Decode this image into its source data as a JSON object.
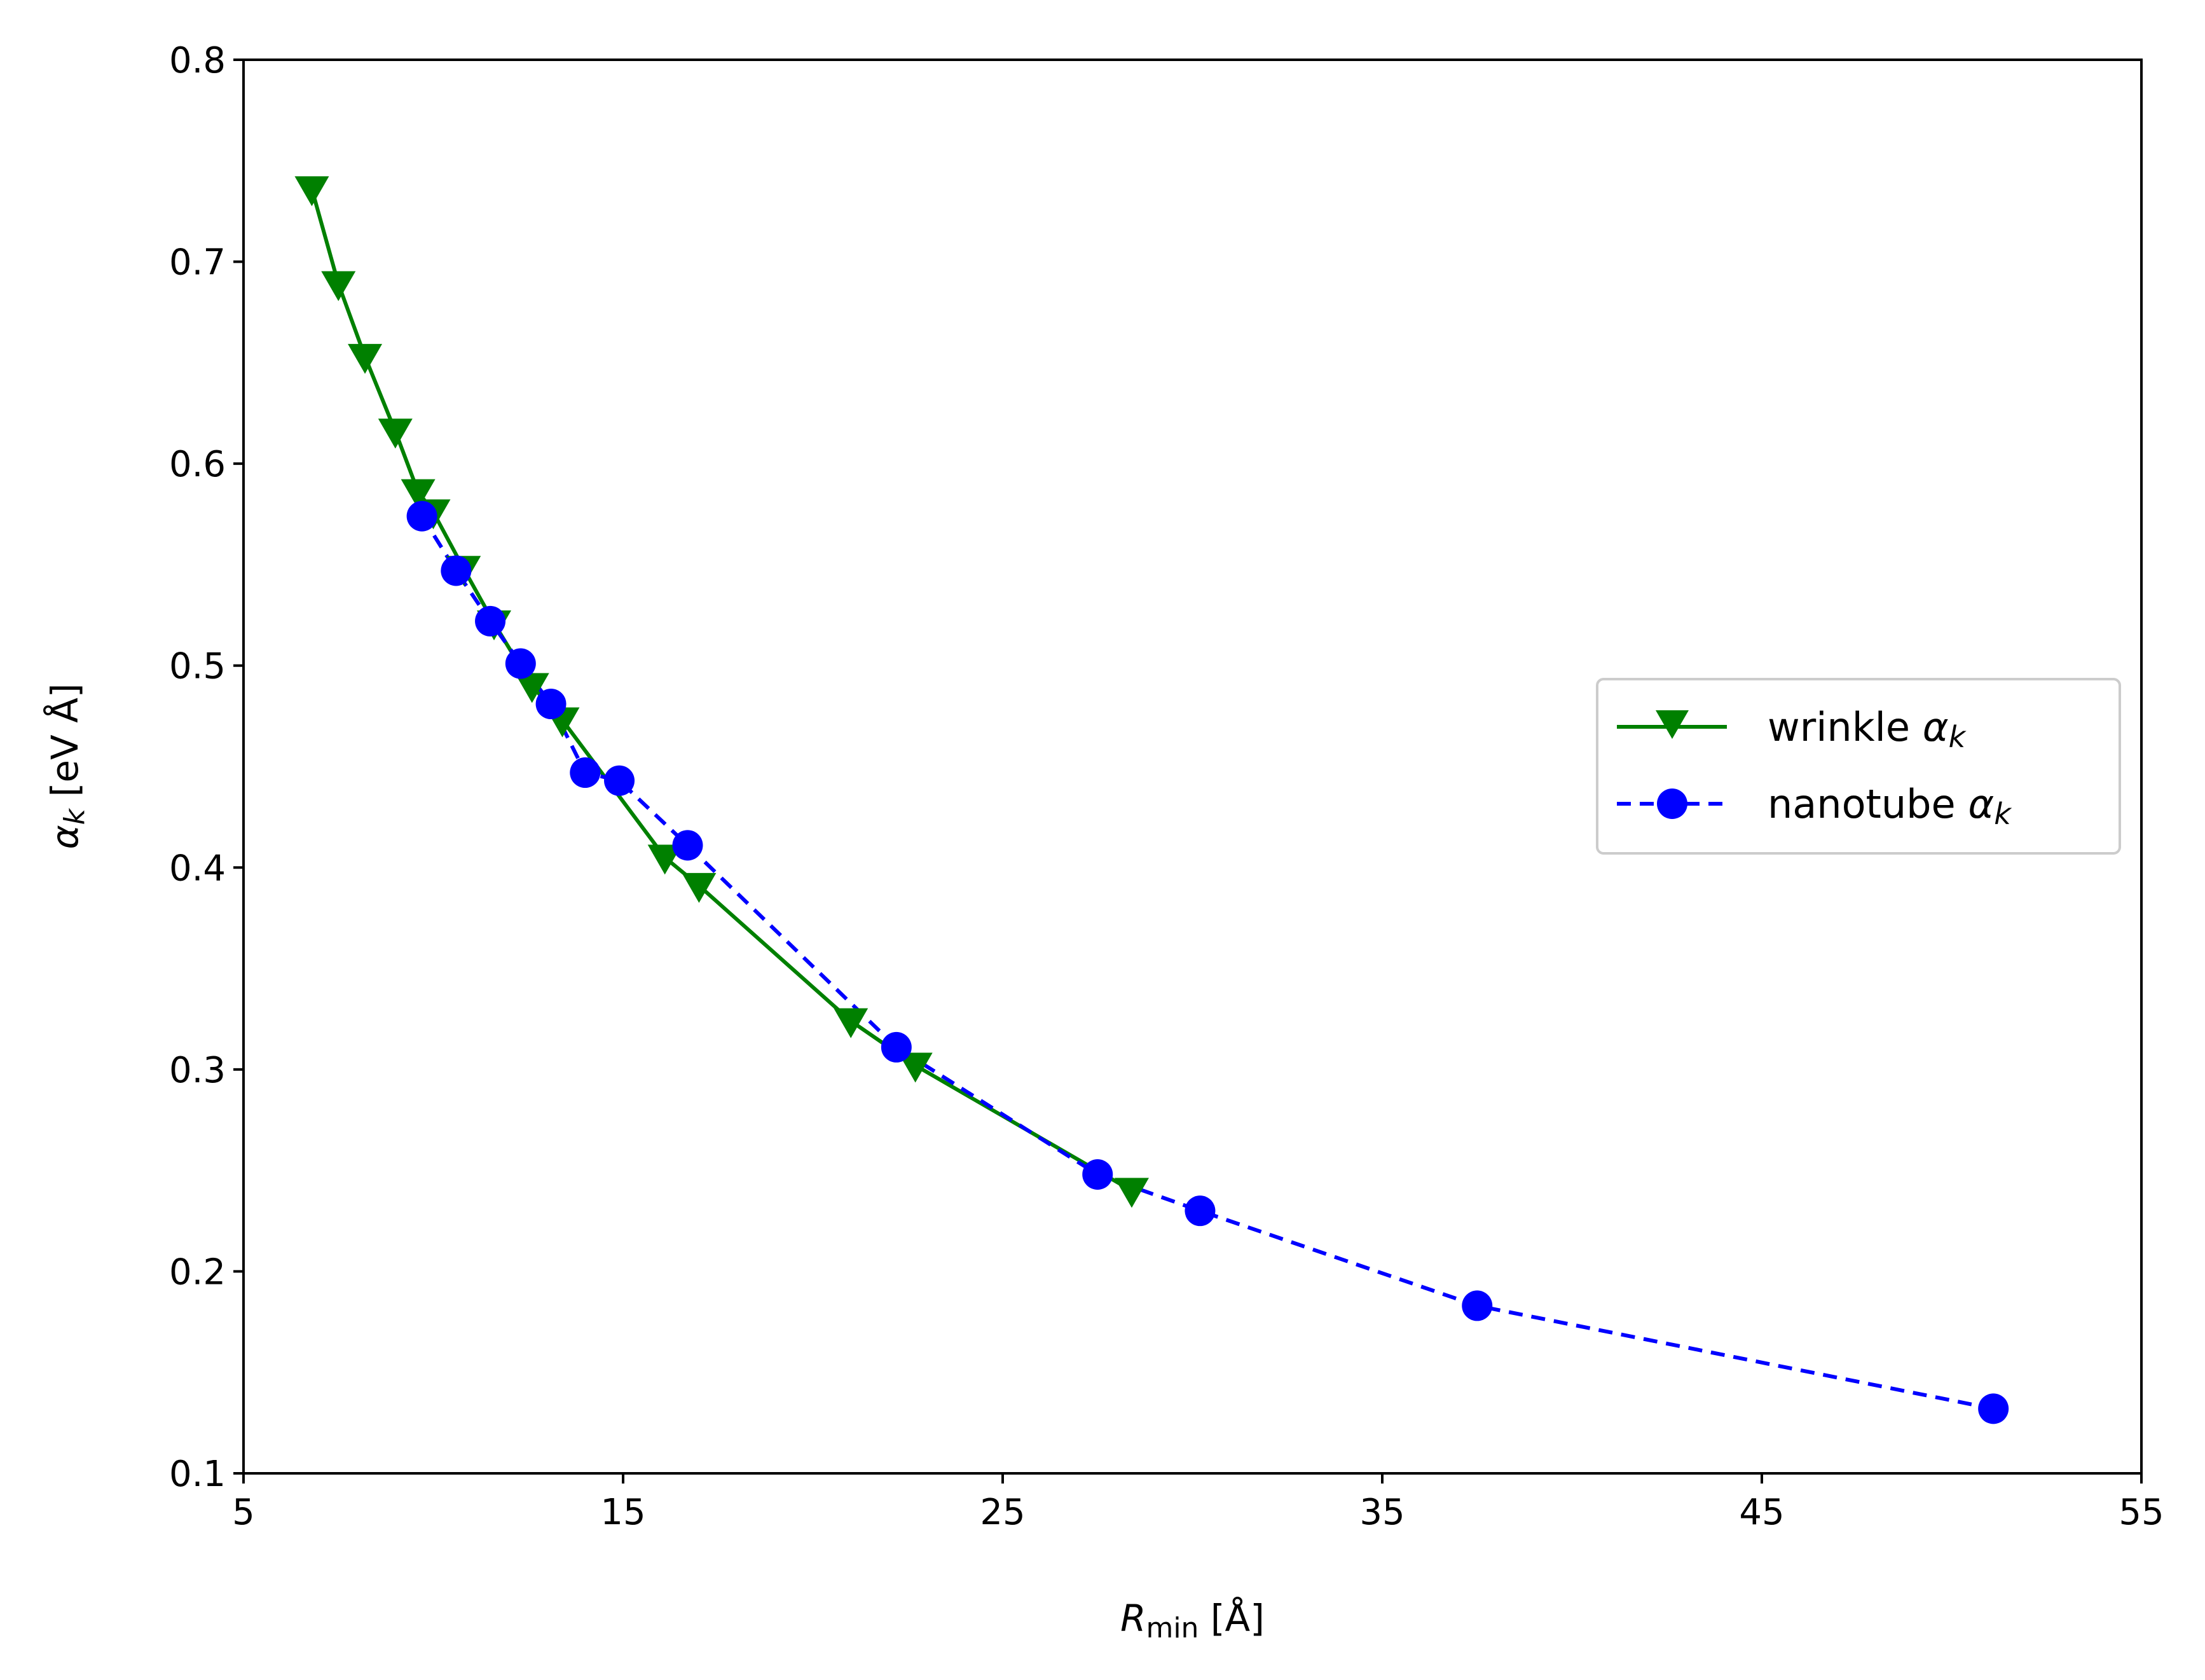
{
  "chart_data": {
    "type": "line",
    "xlabel": {
      "symbol": "R",
      "subscript": "min",
      "unit": "[Å]"
    },
    "ylabel": {
      "symbol": "α",
      "subscript": "k",
      "unit": "[eV Å]"
    },
    "xlim": [
      5,
      55
    ],
    "ylim": [
      0.1,
      0.8
    ],
    "xticks": [
      5,
      15,
      25,
      35,
      45,
      55
    ],
    "xtick_labels": [
      "5",
      "15",
      "25",
      "35",
      "45",
      "55"
    ],
    "yticks": [
      0.1,
      0.2,
      0.3,
      0.4,
      0.5,
      0.6,
      0.7,
      0.8
    ],
    "ytick_labels": [
      "0.1",
      "0.2",
      "0.3",
      "0.4",
      "0.5",
      "0.6",
      "0.7",
      "0.8"
    ],
    "grid": false,
    "legend_position": "center-right",
    "series": [
      {
        "name": "wrinkle",
        "subscript": "k",
        "symbol": "α",
        "color": "#008000",
        "linestyle": "solid",
        "marker": "triangle-down",
        "points": [
          {
            "x": 6.8,
            "y": 0.736
          },
          {
            "x": 7.5,
            "y": 0.689
          },
          {
            "x": 8.2,
            "y": 0.653
          },
          {
            "x": 9.0,
            "y": 0.616
          },
          {
            "x": 9.6,
            "y": 0.586
          },
          {
            "x": 10.0,
            "y": 0.576
          },
          {
            "x": 10.8,
            "y": 0.548
          },
          {
            "x": 11.6,
            "y": 0.521
          },
          {
            "x": 12.6,
            "y": 0.49
          },
          {
            "x": 13.4,
            "y": 0.473
          },
          {
            "x": 16.1,
            "y": 0.405
          },
          {
            "x": 17.0,
            "y": 0.391
          },
          {
            "x": 21.0,
            "y": 0.324
          },
          {
            "x": 22.7,
            "y": 0.302
          },
          {
            "x": 28.4,
            "y": 0.24
          }
        ]
      },
      {
        "name": "nanotube",
        "subscript": "k",
        "symbol": "α",
        "color": "#0000ff",
        "linestyle": "dashed",
        "marker": "circle",
        "points": [
          {
            "x": 9.7,
            "y": 0.574
          },
          {
            "x": 10.6,
            "y": 0.547
          },
          {
            "x": 11.5,
            "y": 0.522
          },
          {
            "x": 12.3,
            "y": 0.501
          },
          {
            "x": 13.1,
            "y": 0.481
          },
          {
            "x": 14.0,
            "y": 0.447
          },
          {
            "x": 14.9,
            "y": 0.443
          },
          {
            "x": 16.7,
            "y": 0.411
          },
          {
            "x": 22.2,
            "y": 0.311
          },
          {
            "x": 27.5,
            "y": 0.248
          },
          {
            "x": 30.2,
            "y": 0.23
          },
          {
            "x": 37.5,
            "y": 0.183
          },
          {
            "x": 51.1,
            "y": 0.132
          }
        ]
      }
    ]
  }
}
